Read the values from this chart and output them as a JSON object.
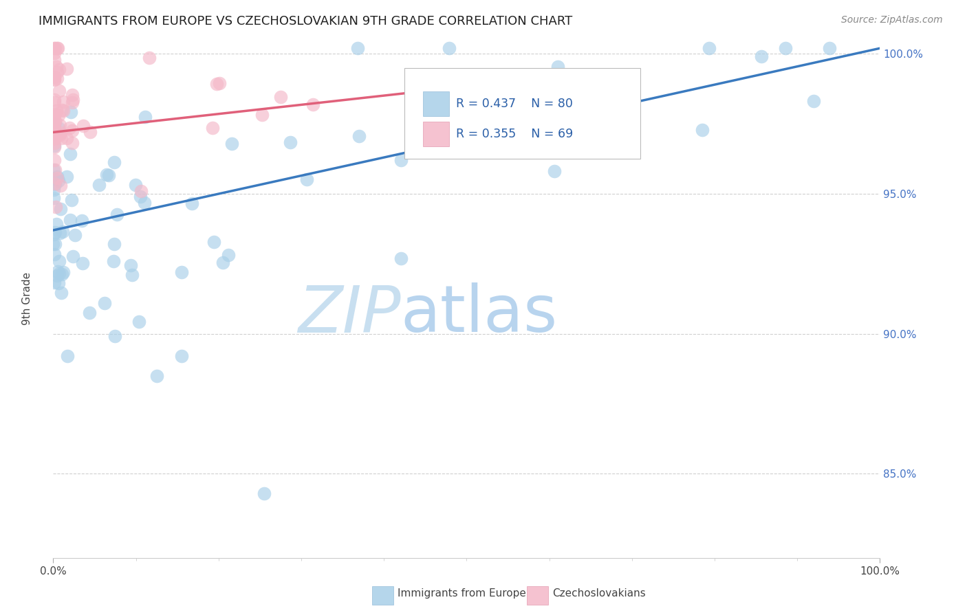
{
  "title": "IMMIGRANTS FROM EUROPE VS CZECHOSLOVAKIAN 9TH GRADE CORRELATION CHART",
  "source": "Source: ZipAtlas.com",
  "ylabel": "9th Grade",
  "xlim": [
    0.0,
    1.0
  ],
  "ylim": [
    0.82,
    1.005
  ],
  "y_tick_vals_right": [
    0.85,
    0.9,
    0.95,
    1.0
  ],
  "legend_blue_label": "Immigrants from Europe",
  "legend_pink_label": "Czechoslovakians",
  "R_blue": 0.437,
  "N_blue": 80,
  "R_pink": 0.355,
  "N_pink": 69,
  "blue_color": "#a8cfe8",
  "pink_color": "#f4b8c8",
  "blue_line_color": "#3a7abf",
  "pink_line_color": "#e0607a",
  "blue_line_x0": 0.0,
  "blue_line_y0": 0.937,
  "blue_line_x1": 1.0,
  "blue_line_y1": 1.002,
  "pink_line_x0": 0.0,
  "pink_line_y0": 0.972,
  "pink_line_x1": 0.55,
  "pink_line_y1": 0.99,
  "watermark_zip": "ZIP",
  "watermark_atlas": "atlas",
  "background_color": "#ffffff",
  "grid_color": "#d0d0d0"
}
